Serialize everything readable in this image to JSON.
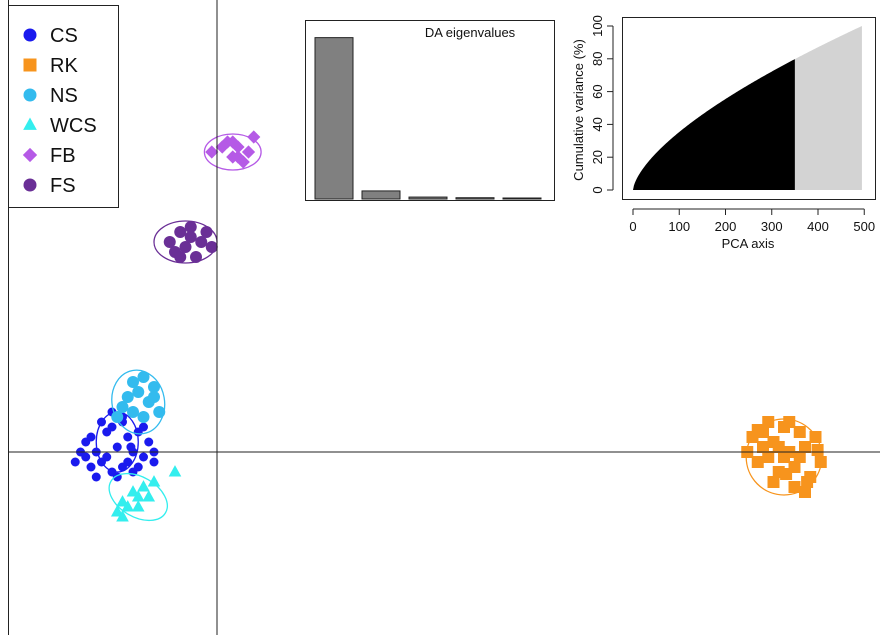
{
  "chart_data": [
    {
      "type": "scatter",
      "title": "",
      "xlabel": "",
      "ylabel": "",
      "legend": {
        "placement": "top-left",
        "entries": [
          {
            "name": "CS",
            "color": "#1a1aee",
            "shape": "circle"
          },
          {
            "name": "RK",
            "color": "#f7941d",
            "shape": "square"
          },
          {
            "name": "NS",
            "color": "#33bbee",
            "shape": "circle"
          },
          {
            "name": "WCS",
            "color": "#33eeee",
            "shape": "triangle"
          },
          {
            "name": "FB",
            "color": "#b55ae6",
            "shape": "diamond"
          },
          {
            "name": "FS",
            "color": "#6a2f96",
            "shape": "circle"
          }
        ]
      },
      "xlim": [
        -2,
        8
      ],
      "ylim": [
        -2,
        5
      ],
      "axes_origin": [
        0,
        0
      ],
      "clusters": [
        {
          "name": "CS",
          "center": [
            -0.95,
            0.1
          ],
          "ellipse": {
            "rx": 0.2,
            "ry": 0.3,
            "angle": 0
          },
          "points": [
            [
              -1.3,
              0.0
            ],
            [
              -1.25,
              0.1
            ],
            [
              -1.2,
              0.15
            ],
            [
              -1.15,
              0.0
            ],
            [
              -1.1,
              -0.1
            ],
            [
              -1.05,
              0.2
            ],
            [
              -1.0,
              0.25
            ],
            [
              -0.95,
              0.05
            ],
            [
              -0.9,
              -0.15
            ],
            [
              -0.85,
              0.15
            ],
            [
              -0.8,
              0.0
            ],
            [
              -0.75,
              0.2
            ],
            [
              -0.7,
              -0.05
            ],
            [
              -0.65,
              0.1
            ],
            [
              -0.6,
              0.0
            ],
            [
              -1.2,
              -0.15
            ],
            [
              -1.0,
              -0.2
            ],
            [
              -0.9,
              0.3
            ],
            [
              -0.8,
              -0.2
            ],
            [
              -1.1,
              0.3
            ],
            [
              -0.95,
              -0.25
            ],
            [
              -0.7,
              0.25
            ],
            [
              -1.25,
              -0.05
            ],
            [
              -1.05,
              -0.05
            ],
            [
              -0.85,
              -0.1
            ],
            [
              -0.75,
              -0.15
            ],
            [
              -1.35,
              -0.1
            ],
            [
              -0.6,
              -0.1
            ],
            [
              -1.0,
              0.4
            ],
            [
              -0.9,
              0.35
            ],
            [
              -1.15,
              -0.25
            ],
            [
              -0.82,
              0.05
            ]
          ]
        },
        {
          "name": "RK",
          "center": [
            5.4,
            -0.05
          ],
          "ellipse": {
            "rx": 0.36,
            "ry": 0.38,
            "angle": 0
          },
          "points": [
            [
              5.05,
              0.0
            ],
            [
              5.1,
              0.15
            ],
            [
              5.15,
              -0.1
            ],
            [
              5.2,
              0.2
            ],
            [
              5.25,
              -0.05
            ],
            [
              5.3,
              0.1
            ],
            [
              5.35,
              -0.2
            ],
            [
              5.4,
              0.25
            ],
            [
              5.45,
              0.0
            ],
            [
              5.5,
              -0.15
            ],
            [
              5.55,
              0.2
            ],
            [
              5.6,
              0.05
            ],
            [
              5.65,
              -0.25
            ],
            [
              5.7,
              0.15
            ],
            [
              5.75,
              -0.1
            ],
            [
              5.3,
              -0.3
            ],
            [
              5.5,
              -0.35
            ],
            [
              5.6,
              -0.4
            ],
            [
              5.2,
              0.05
            ],
            [
              5.4,
              -0.05
            ],
            [
              5.45,
              0.3
            ],
            [
              5.35,
              0.05
            ],
            [
              5.55,
              -0.05
            ],
            [
              5.25,
              0.3
            ],
            [
              5.62,
              -0.3
            ],
            [
              5.72,
              0.02
            ],
            [
              5.15,
              0.22
            ],
            [
              5.42,
              -0.22
            ]
          ]
        },
        {
          "name": "NS",
          "center": [
            -0.75,
            0.5
          ],
          "ellipse": {
            "rx": 0.25,
            "ry": 0.32,
            "angle": 10
          },
          "points": [
            [
              -0.95,
              0.35
            ],
            [
              -0.9,
              0.45
            ],
            [
              -0.85,
              0.55
            ],
            [
              -0.8,
              0.7
            ],
            [
              -0.75,
              0.6
            ],
            [
              -0.7,
              0.75
            ],
            [
              -0.65,
              0.5
            ],
            [
              -0.6,
              0.65
            ],
            [
              -0.55,
              0.4
            ],
            [
              -0.8,
              0.4
            ],
            [
              -0.7,
              0.35
            ],
            [
              -0.6,
              0.55
            ]
          ]
        },
        {
          "name": "WCS",
          "center": [
            -0.75,
            -0.45
          ],
          "ellipse": {
            "rx": 0.3,
            "ry": 0.2,
            "angle": -30
          },
          "points": [
            [
              -0.95,
              -0.6
            ],
            [
              -0.9,
              -0.5
            ],
            [
              -0.85,
              -0.55
            ],
            [
              -0.8,
              -0.4
            ],
            [
              -0.75,
              -0.45
            ],
            [
              -0.7,
              -0.35
            ],
            [
              -0.65,
              -0.45
            ],
            [
              -0.6,
              -0.3
            ],
            [
              -0.4,
              -0.2
            ],
            [
              -0.9,
              -0.65
            ],
            [
              -0.75,
              -0.55
            ]
          ]
        },
        {
          "name": "FB",
          "center": [
            0.15,
            3.0
          ],
          "ellipse": {
            "rx": 0.27,
            "ry": 0.18,
            "angle": 0
          },
          "points": [
            [
              -0.05,
              3.0
            ],
            [
              0.05,
              3.05
            ],
            [
              0.1,
              3.1
            ],
            [
              0.15,
              2.95
            ],
            [
              0.2,
              3.05
            ],
            [
              0.25,
              2.9
            ],
            [
              0.3,
              3.0
            ],
            [
              0.35,
              3.15
            ],
            [
              0.15,
              3.1
            ],
            [
              0.2,
              2.95
            ]
          ]
        },
        {
          "name": "FS",
          "center": [
            -0.3,
            2.1
          ],
          "ellipse": {
            "rx": 0.3,
            "ry": 0.21,
            "angle": 0
          },
          "points": [
            [
              -0.45,
              2.1
            ],
            [
              -0.4,
              2.0
            ],
            [
              -0.35,
              2.2
            ],
            [
              -0.3,
              2.05
            ],
            [
              -0.25,
              2.15
            ],
            [
              -0.2,
              1.95
            ],
            [
              -0.15,
              2.1
            ],
            [
              -0.1,
              2.2
            ],
            [
              -0.05,
              2.05
            ],
            [
              -0.35,
              1.95
            ],
            [
              -0.25,
              2.25
            ]
          ]
        }
      ]
    },
    {
      "type": "bar",
      "title": "DA eigenvalues",
      "values": [
        100,
        5,
        1.2,
        0.8,
        0.6
      ],
      "ylim": [
        0,
        110
      ]
    },
    {
      "type": "area",
      "title": "",
      "xlabel": "PCA axis",
      "ylabel": "Cumulative variance (%)",
      "xlim": [
        0,
        500
      ],
      "ylim": [
        0,
        100
      ],
      "xticks": [
        0,
        100,
        200,
        300,
        400,
        500
      ],
      "yticks": [
        0,
        20,
        40,
        60,
        80,
        100
      ],
      "retained_axes": 350,
      "total_axes": 495,
      "curve_exponent": 0.65,
      "colors": {
        "retained": "#000000",
        "other": "#d3d3d3"
      }
    }
  ]
}
